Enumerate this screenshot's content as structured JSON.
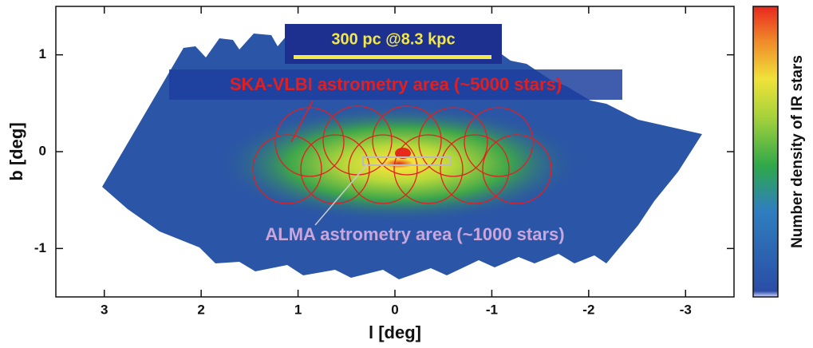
{
  "chart_data": {
    "type": "density",
    "xlabel": "l [deg]",
    "ylabel": "b [deg]",
    "xlim": [
      3.5,
      -3.5
    ],
    "ylim": [
      -1.5,
      1.5
    ],
    "xticks": [
      3,
      2,
      1,
      0,
      -1,
      -2,
      -3
    ],
    "yticks": [
      1,
      0,
      -1
    ],
    "annotations": [
      "300 pc @8.3 kpc",
      "SKA-VLBI astrometry area (~5000 stars)",
      "ALMA astrometry area (~1000 stars)"
    ],
    "colorbar_label": "Number density of IR stars"
  }
}
